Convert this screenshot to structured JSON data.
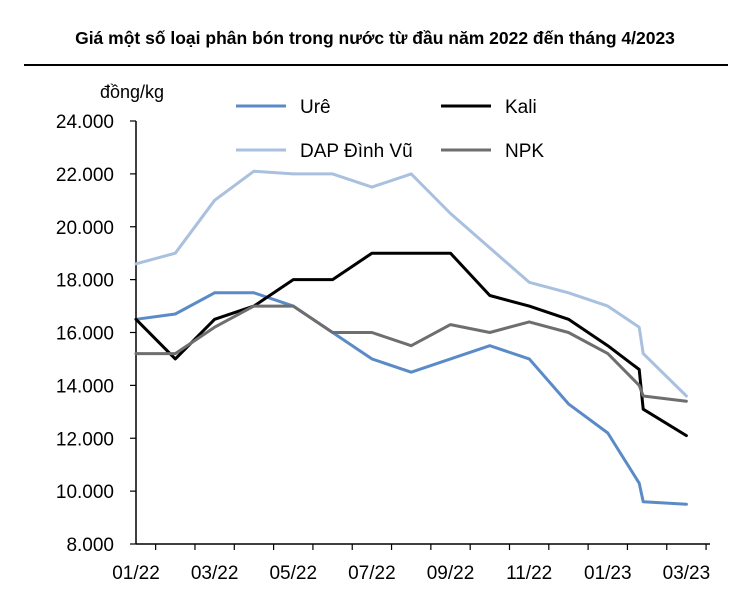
{
  "chart_data": {
    "type": "line",
    "title": "Giá một số loại phân bón trong nước từ đầu năm 2022 đến tháng 4/2023",
    "ylabel": "đồng/kg",
    "xlabel": "",
    "ylim": [
      8000,
      24000
    ],
    "yticks": [
      8000,
      10000,
      12000,
      14000,
      16000,
      18000,
      20000,
      22000,
      24000
    ],
    "ytick_labels": [
      "8.000",
      "10.000",
      "12.000",
      "14.000",
      "16.000",
      "18.000",
      "20.000",
      "22.000",
      "24.000"
    ],
    "xtick_labels": [
      "01/22",
      "03/22",
      "05/22",
      "07/22",
      "09/22",
      "11/22",
      "01/23",
      "03/23"
    ],
    "legend_placement": "top",
    "grid": false,
    "series": [
      {
        "name": "Urê",
        "color": "#5B8BC7",
        "points": [
          [
            0,
            16500
          ],
          [
            1,
            16700
          ],
          [
            2,
            17500
          ],
          [
            3,
            17500
          ],
          [
            4,
            17000
          ],
          [
            5,
            16000
          ],
          [
            6,
            15000
          ],
          [
            7,
            14500
          ],
          [
            8,
            15000
          ],
          [
            9,
            15500
          ],
          [
            10,
            15000
          ],
          [
            11,
            13300
          ],
          [
            12,
            12200
          ],
          [
            12.8,
            10300
          ],
          [
            12.9,
            9600
          ],
          [
            14.0,
            9500
          ]
        ]
      },
      {
        "name": "Kali",
        "color": "#000000",
        "points": [
          [
            0,
            16500
          ],
          [
            1,
            15000
          ],
          [
            2,
            16500
          ],
          [
            3,
            17000
          ],
          [
            4,
            18000
          ],
          [
            5,
            18000
          ],
          [
            6,
            19000
          ],
          [
            7,
            19000
          ],
          [
            8,
            19000
          ],
          [
            9,
            17400
          ],
          [
            10,
            17000
          ],
          [
            11,
            16500
          ],
          [
            12,
            15500
          ],
          [
            12.8,
            14600
          ],
          [
            12.9,
            13100
          ],
          [
            14.0,
            12100
          ]
        ]
      },
      {
        "name": "DAP Đình Vũ",
        "color": "#A9C0DF",
        "points": [
          [
            0,
            18600
          ],
          [
            1,
            19000
          ],
          [
            2,
            21000
          ],
          [
            3,
            22100
          ],
          [
            4,
            22000
          ],
          [
            5,
            22000
          ],
          [
            6,
            21500
          ],
          [
            7,
            22000
          ],
          [
            8,
            20500
          ],
          [
            9,
            19200
          ],
          [
            10,
            17900
          ],
          [
            11,
            17500
          ],
          [
            12,
            17000
          ],
          [
            12.8,
            16200
          ],
          [
            12.9,
            15200
          ],
          [
            14.0,
            13600
          ]
        ]
      },
      {
        "name": "NPK",
        "color": "#6E6E6E",
        "points": [
          [
            0,
            15200
          ],
          [
            1,
            15200
          ],
          [
            2,
            16200
          ],
          [
            3,
            17000
          ],
          [
            4,
            17000
          ],
          [
            5,
            16000
          ],
          [
            6,
            16000
          ],
          [
            7,
            15500
          ],
          [
            8,
            16300
          ],
          [
            9,
            16000
          ],
          [
            10,
            16400
          ],
          [
            11,
            16000
          ],
          [
            12,
            15200
          ],
          [
            12.8,
            14000
          ],
          [
            12.9,
            13600
          ],
          [
            14.0,
            13400
          ]
        ]
      }
    ]
  }
}
